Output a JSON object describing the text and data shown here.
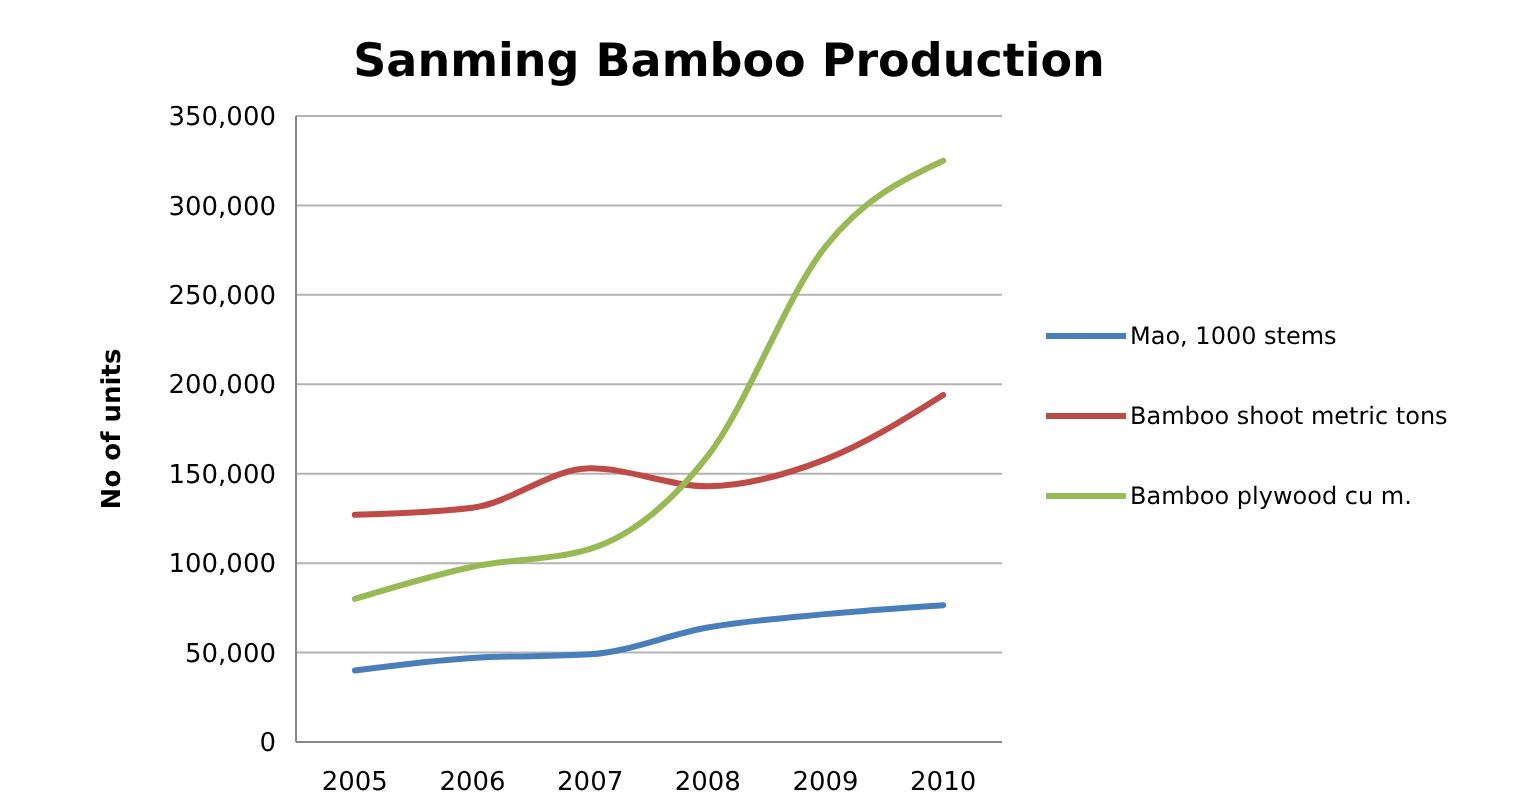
{
  "chart_data": {
    "type": "line",
    "title": "Sanming Bamboo Production",
    "ylabel": "No of units",
    "categories": [
      "2005",
      "2006",
      "2007",
      "2008",
      "2009",
      "2010"
    ],
    "series": [
      {
        "name": "Mao, 1000 stems",
        "color": "#4a7ebb",
        "values": [
          40000,
          47000,
          49000,
          64000,
          71500,
          76500
        ]
      },
      {
        "name": "Bamboo shoot metric tons",
        "color": "#be4b48",
        "values": [
          127000,
          131000,
          153000,
          143000,
          158000,
          194000
        ]
      },
      {
        "name": "Bamboo plywood cu m.",
        "color": "#98b954",
        "values": [
          80000,
          98000,
          108000,
          160000,
          277000,
          325000
        ]
      }
    ],
    "ylim": [
      0,
      350000
    ],
    "yticks": [
      {
        "value": 0,
        "label": "0"
      },
      {
        "value": 50000,
        "label": "50,000"
      },
      {
        "value": 100000,
        "label": "100,000"
      },
      {
        "value": 150000,
        "label": "150,000"
      },
      {
        "value": 200000,
        "label": "200,000"
      },
      {
        "value": 250000,
        "label": "250,000"
      },
      {
        "value": 300000,
        "label": "300,000"
      },
      {
        "value": 350000,
        "label": "350,000"
      }
    ],
    "grid": "y",
    "legend": "right",
    "marker": "none",
    "line_style": "solid"
  }
}
